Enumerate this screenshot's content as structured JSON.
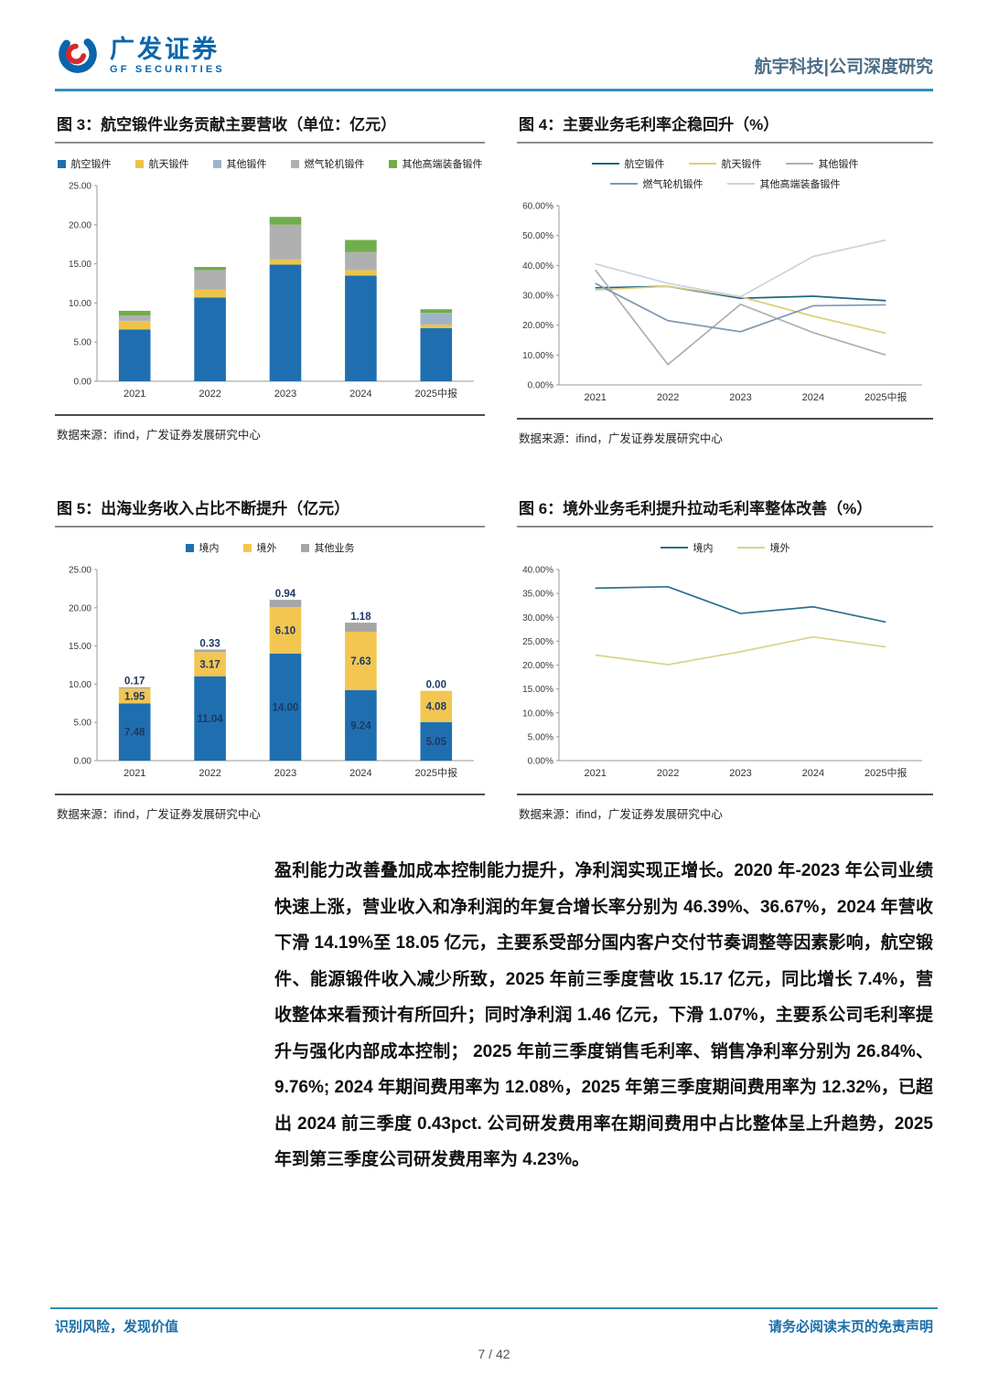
{
  "header": {
    "brand_cn": "广发证券",
    "brand_en": "GF SECURITIES",
    "topic": "航宇科技|公司深度研究"
  },
  "figures": [
    {
      "title": "图 3：航空锻件业务贡献主要营收（单位：亿元）",
      "source": "数据来源：ifind，广发证券发展研究中心"
    },
    {
      "title": "图 4：主要业务毛利率企稳回升（%）",
      "source": "数据来源：ifind，广发证券发展研究中心"
    },
    {
      "title": "图 5：出海业务收入占比不断提升（亿元）",
      "source": "数据来源：ifind，广发证券发展研究中心"
    },
    {
      "title": "图 6：境外业务毛利提升拉动毛利率整体改善（%）",
      "source": "数据来源：ifind，广发证券发展研究中心"
    }
  ],
  "chart_data": [
    {
      "type": "bar",
      "stacked": true,
      "title": "航空锻件业务贡献主要营收（单位：亿元）",
      "categories": [
        "2021",
        "2022",
        "2023",
        "2024",
        "2025中报"
      ],
      "series": [
        {
          "name": "航空锻件",
          "color": "#1f6fb0",
          "values": [
            6.6,
            10.7,
            14.9,
            13.5,
            6.8
          ]
        },
        {
          "name": "航天锻件",
          "color": "#edc44a",
          "values": [
            1.1,
            1.0,
            0.65,
            0.7,
            0.45
          ]
        },
        {
          "name": "其他锻件",
          "color": "#9fb3c8",
          "values": [
            0.05,
            0.1,
            0.1,
            0.1,
            1.4
          ]
        },
        {
          "name": "燃气轮机锻件",
          "color": "#b0b0b0",
          "values": [
            0.65,
            2.4,
            4.35,
            2.2,
            0.1
          ]
        },
        {
          "name": "其他高端装备锻件",
          "color": "#6fae4b",
          "values": [
            0.6,
            0.4,
            1.0,
            1.55,
            0.45
          ]
        }
      ],
      "ylim": [
        0,
        25
      ],
      "ytick_step": 5,
      "tick_format": "2dp",
      "grid": false,
      "legend_position": "top"
    },
    {
      "type": "line",
      "title": "主要业务毛利率企稳回升（%）",
      "categories": [
        "2021",
        "2022",
        "2023",
        "2024",
        "2025中报"
      ],
      "series": [
        {
          "name": "航空锻件",
          "color": "#1f6484",
          "values": [
            32.5,
            33.0,
            29.0,
            29.7,
            28.2
          ]
        },
        {
          "name": "航天锻件",
          "color": "#dccf7c",
          "values": [
            31.8,
            33.0,
            29.5,
            23.0,
            17.3
          ]
        },
        {
          "name": "其他锻件",
          "color": "#afafaf",
          "values": [
            38.5,
            6.8,
            27.0,
            17.5,
            10.0
          ]
        },
        {
          "name": "燃气轮机锻件",
          "color": "#7e99b5",
          "values": [
            34.0,
            21.5,
            17.8,
            26.5,
            26.8
          ]
        },
        {
          "name": "其他高端装备锻件",
          "color": "#c9d3dc",
          "values": [
            40.5,
            34.0,
            29.5,
            43.0,
            48.5
          ]
        }
      ],
      "ylim": [
        0,
        60
      ],
      "ytick_step": 10,
      "tick_format": "pct2dp",
      "grid": false,
      "legend_position": "top"
    },
    {
      "type": "bar",
      "stacked": true,
      "data_labels": true,
      "title": "出海业务收入占比不断提升（亿元）",
      "categories": [
        "2021",
        "2022",
        "2023",
        "2024",
        "2025中报"
      ],
      "series": [
        {
          "name": "境内",
          "color": "#1f6fb0",
          "values": [
            7.48,
            11.04,
            14.0,
            9.24,
            5.05
          ]
        },
        {
          "name": "境外",
          "color": "#f2c651",
          "values": [
            1.95,
            3.17,
            6.1,
            7.63,
            4.08
          ]
        },
        {
          "name": "其他业务",
          "color": "#a6a6a6",
          "values": [
            0.17,
            0.33,
            0.94,
            1.18,
            0.0
          ]
        }
      ],
      "ylim": [
        0,
        25
      ],
      "ytick_step": 5,
      "tick_format": "2dp",
      "grid": false,
      "legend_position": "top"
    },
    {
      "type": "line",
      "title": "境外业务毛利提升拉动毛利率整体改善（%）",
      "categories": [
        "2021",
        "2022",
        "2023",
        "2024",
        "2025中报"
      ],
      "series": [
        {
          "name": "境内",
          "color": "#2e6e8e",
          "values": [
            36.1,
            36.4,
            30.8,
            32.2,
            29.0
          ]
        },
        {
          "name": "境外",
          "color": "#d9d48a",
          "values": [
            22.1,
            20.1,
            22.8,
            25.9,
            23.8
          ]
        }
      ],
      "ylim": [
        0,
        40
      ],
      "ytick_step": 5,
      "tick_format": "pct2dp",
      "grid": false,
      "legend_position": "top"
    }
  ],
  "paragraph": {
    "lead": "盈利能力改善叠加成本控制能力提升，净利润实现正增长。",
    "body": "2020 年-2023 年公司业绩快速上涨，营业收入和净利润的年复合增长率分别为 46.39%、36.67%，2024 年营收下滑 14.19%至 18.05 亿元，主要系受部分国内客户交付节奏调整等因素影响，航空锻件、能源锻件收入减少所致，2025 年前三季度营收 15.17 亿元，同比增长 7.4%，营收整体来看预计有所回升；同时净利润 1.46 亿元，下滑 1.07%，主要系公司毛利率提升与强化内部成本控制； 2025 年前三季度销售毛利率、销售净利率分别为 26.84%、9.76%; 2024 年期间费用率为 12.08%，2025 年第三季度期间费用率为 12.32%，已超出 2024 前三季度 0.43pct. 公司研发费用率在期间费用中占比整体呈上升趋势，2025 年到第三季度公司研发费用率为 4.23%。"
  },
  "footer": {
    "left": "识别风险，发现价值",
    "right": "请务必阅读末页的免责声明",
    "page": "7 / 42"
  }
}
